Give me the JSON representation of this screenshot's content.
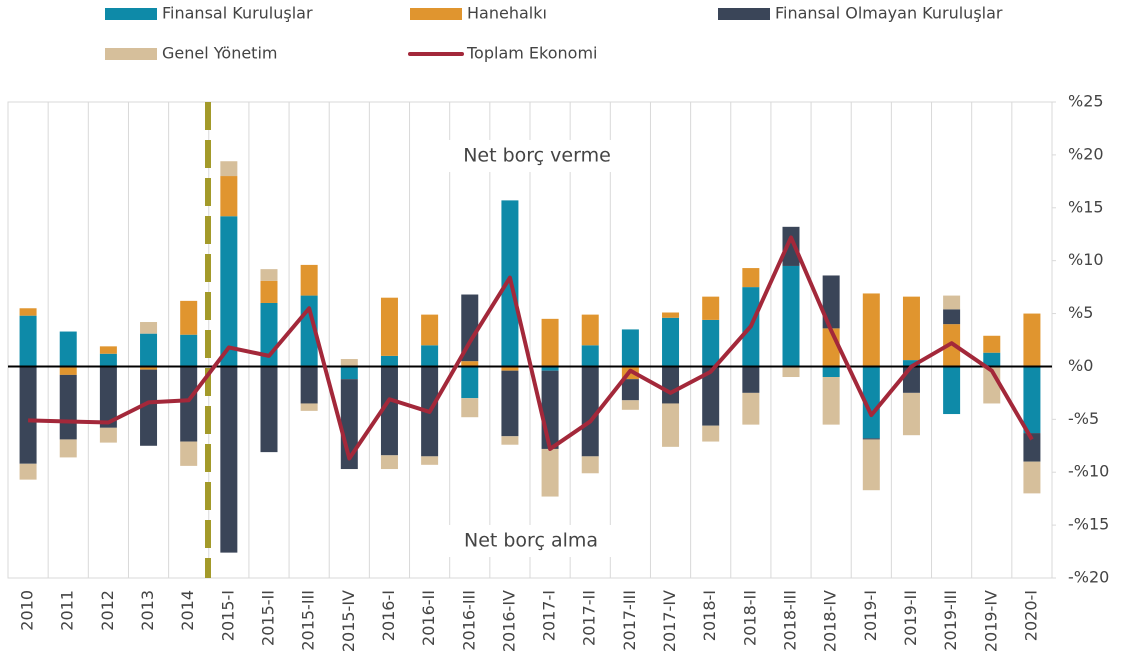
{
  "chart_data": {
    "type": "bar",
    "categories": [
      "2010",
      "2011",
      "2012",
      "2013",
      "2014",
      "2015-I",
      "2015-II",
      "2015-III",
      "2015-IV",
      "2016-I",
      "2016-II",
      "2016-III",
      "2016-IV",
      "2017-I",
      "2017-II",
      "2017-III",
      "2017-IV",
      "2018-I",
      "2018-II",
      "2018-III",
      "2018-IV",
      "2019-I",
      "2019-II",
      "2019-III",
      "2019-IV",
      "2020-I"
    ],
    "series": [
      {
        "name": "Finansal Kuruluşlar",
        "color": "#0e8aa8",
        "values": [
          4.8,
          3.3,
          1.2,
          3.1,
          3.0,
          14.2,
          6.0,
          6.7,
          -1.2,
          1.0,
          2.0,
          -3.0,
          15.7,
          -0.4,
          2.0,
          3.5,
          4.6,
          4.4,
          7.5,
          9.5,
          -1.0,
          -6.8,
          0.6,
          -4.5,
          1.3,
          -6.3
        ]
      },
      {
        "name": "Hanehalkı",
        "color": "#e0952f",
        "values": [
          0.7,
          -0.8,
          0.7,
          -0.3,
          3.2,
          3.8,
          2.1,
          2.9,
          0,
          5.5,
          2.9,
          0.5,
          -0.4,
          4.5,
          2.9,
          -1.2,
          0.5,
          2.2,
          1.8,
          0,
          3.6,
          6.9,
          6.0,
          4.0,
          1.6,
          5.0
        ]
      },
      {
        "name": "Finansal Olmayan Kuruluşlar",
        "color": "#3a4558",
        "values": [
          -9.2,
          -6.1,
          -5.8,
          -7.2,
          -7.1,
          -17.6,
          -8.1,
          -3.5,
          -8.5,
          -8.4,
          -8.5,
          6.3,
          -6.2,
          -7.4,
          -8.5,
          -2.0,
          -3.5,
          -5.6,
          -2.5,
          3.7,
          5.0,
          -0.1,
          -2.5,
          1.4,
          0,
          -2.7
        ]
      },
      {
        "name": "Genel Yönetim",
        "color": "#d6bf9b",
        "values": [
          -1.5,
          -1.7,
          -1.4,
          1.1,
          -2.3,
          1.4,
          1.1,
          -0.7,
          0.7,
          -1.3,
          -0.8,
          -1.8,
          -0.8,
          -4.5,
          -1.6,
          -0.9,
          -4.1,
          -1.5,
          -3.0,
          -1.0,
          -4.5,
          -4.8,
          -4.0,
          1.3,
          -3.5,
          -3.0
        ]
      },
      {
        "name": "Toplam Ekonomi",
        "type": "line",
        "color": "#a3283a",
        "values": [
          -5.1,
          -5.2,
          -5.3,
          -3.4,
          -3.2,
          1.8,
          1.0,
          5.5,
          -8.7,
          -3.1,
          -4.3,
          2.3,
          8.4,
          -7.8,
          -5.2,
          -0.4,
          -2.5,
          -0.5,
          3.8,
          12.2,
          3.4,
          -4.6,
          0.0,
          2.2,
          -0.4,
          -6.9
        ]
      }
    ],
    "annotations": [
      "Net borç verme",
      "Net borç alma"
    ],
    "ylim": [
      -20,
      25
    ],
    "yticks": [
      {
        "value": 25,
        "label": "%25"
      },
      {
        "value": 20,
        "label": "%20"
      },
      {
        "value": 15,
        "label": "%15"
      },
      {
        "value": 10,
        "label": "%10"
      },
      {
        "value": 5,
        "label": "%5"
      },
      {
        "value": 0,
        "label": "%0"
      },
      {
        "value": -5,
        "label": "-%5"
      },
      {
        "value": -10,
        "label": "-%10"
      },
      {
        "value": -15,
        "label": "-%15"
      },
      {
        "value": -20,
        "label": "-%20"
      }
    ],
    "stacked": true
  }
}
